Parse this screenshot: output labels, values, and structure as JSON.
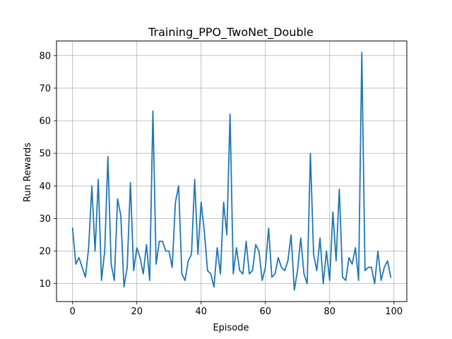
{
  "chart_data": {
    "type": "line",
    "title": "Training_PPO_TwoNet_Double",
    "xlabel": "Episode",
    "ylabel": "Run Rewards",
    "xlim": [
      -5,
      104
    ],
    "ylim": [
      4.5,
      84.5
    ],
    "xticks": [
      0,
      20,
      40,
      60,
      80,
      100
    ],
    "yticks": [
      10,
      20,
      30,
      40,
      50,
      60,
      70,
      80
    ],
    "grid": true,
    "legend": "none",
    "series": [
      {
        "color": "#1f77b4",
        "x": [
          0,
          1,
          2,
          3,
          4,
          5,
          6,
          7,
          8,
          9,
          10,
          11,
          12,
          13,
          14,
          15,
          16,
          17,
          18,
          19,
          20,
          21,
          22,
          23,
          24,
          25,
          26,
          27,
          28,
          29,
          30,
          31,
          32,
          33,
          34,
          35,
          36,
          37,
          38,
          39,
          40,
          41,
          42,
          43,
          44,
          45,
          46,
          47,
          48,
          49,
          50,
          51,
          52,
          53,
          54,
          55,
          56,
          57,
          58,
          59,
          60,
          61,
          62,
          63,
          64,
          65,
          66,
          67,
          68,
          69,
          70,
          71,
          72,
          73,
          74,
          75,
          76,
          77,
          78,
          79,
          80,
          81,
          82,
          83,
          84,
          85,
          86,
          87,
          88,
          89,
          90,
          91,
          92,
          93,
          94,
          95,
          96,
          97,
          98,
          99
        ],
        "values": [
          27,
          16,
          18,
          15,
          12,
          21,
          40,
          20,
          42,
          11,
          20,
          49,
          16,
          11,
          36,
          31,
          9,
          15,
          41,
          14,
          21,
          18,
          13,
          22,
          11,
          63,
          16,
          23,
          23,
          20,
          20,
          15,
          35,
          40,
          13,
          11,
          17,
          19,
          42,
          19,
          35,
          26,
          14,
          13,
          9,
          21,
          13,
          35,
          25,
          62,
          13,
          21,
          14,
          13,
          23,
          13,
          14,
          22,
          20,
          11,
          15,
          27,
          12,
          13,
          18,
          15,
          14,
          17,
          25,
          8,
          14,
          24,
          13,
          10,
          50,
          19,
          14,
          24,
          10,
          20,
          11,
          32,
          17,
          39,
          12,
          11,
          18,
          16,
          21,
          11,
          81,
          14,
          15,
          15,
          10,
          20,
          11,
          15,
          17,
          12
        ]
      }
    ]
  }
}
